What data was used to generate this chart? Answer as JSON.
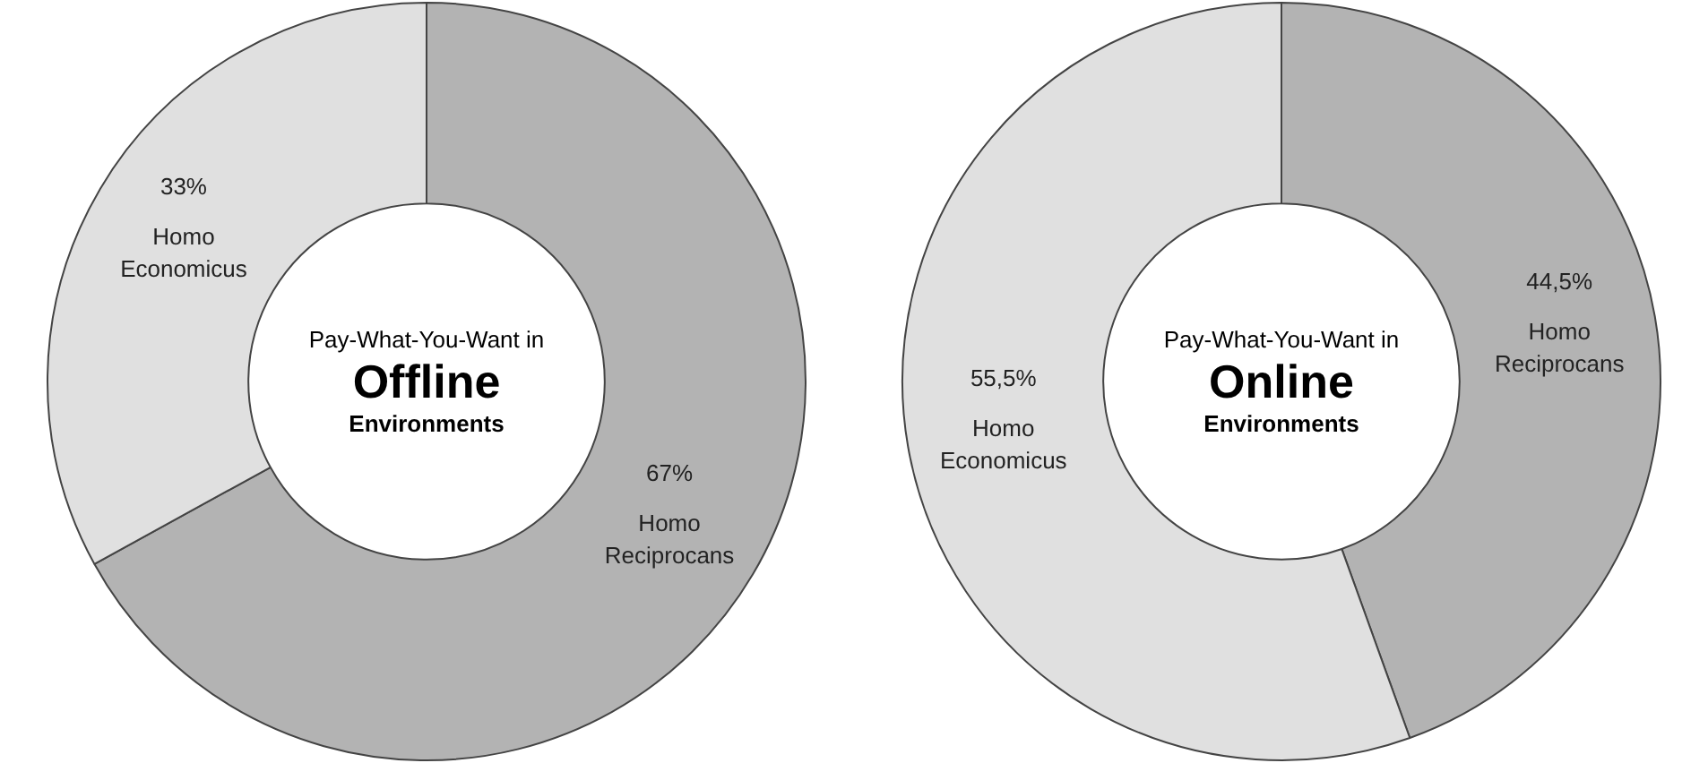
{
  "chart_data": [
    {
      "type": "donut",
      "subtitle": "Pay-What-You-Want in",
      "title": "Offline",
      "annotations": [
        "Environments"
      ],
      "categories": [
        "Homo Reciprocans",
        "Homo Economicus"
      ],
      "values": [
        67,
        33
      ],
      "colors": [
        "#b3b3b3",
        "#e0e0e0"
      ],
      "value_labels": [
        "67%",
        "33%"
      ],
      "legend": false
    },
    {
      "type": "donut",
      "subtitle": "Pay-What-You-Want in",
      "title": "Online",
      "annotations": [
        "Environments"
      ],
      "categories": [
        "Homo Reciprocans",
        "Homo Economicus"
      ],
      "values": [
        44.5,
        55.5
      ],
      "colors": [
        "#b3b3b3",
        "#e0e0e0"
      ],
      "value_labels": [
        "44,5%",
        "55,5%"
      ],
      "legend": false
    }
  ]
}
